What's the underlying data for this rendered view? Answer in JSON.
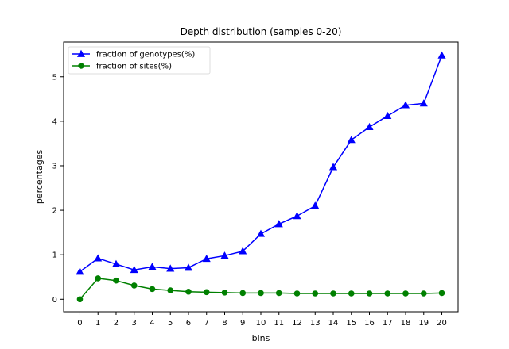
{
  "chart_data": {
    "type": "line",
    "title": "Depth distribution (samples 0-20)",
    "xlabel": "bins",
    "ylabel": "percentages",
    "x": [
      0,
      1,
      2,
      3,
      4,
      5,
      6,
      7,
      8,
      9,
      10,
      11,
      12,
      13,
      14,
      15,
      16,
      17,
      18,
      19,
      20
    ],
    "xlim": [
      -0.9,
      20.9
    ],
    "ylim": [
      -0.28,
      5.78
    ],
    "yticks": [
      0,
      1,
      2,
      3,
      4,
      5
    ],
    "grid": false,
    "legend_position": "top-left",
    "series": [
      {
        "name": "fraction of genotypes(%)",
        "color": "#0000ff",
        "marker": "triangle",
        "values": [
          0.62,
          0.92,
          0.79,
          0.66,
          0.73,
          0.69,
          0.71,
          0.91,
          0.98,
          1.08,
          1.47,
          1.69,
          1.87,
          2.1,
          2.97,
          3.58,
          3.87,
          4.12,
          4.36,
          4.4,
          5.48
        ]
      },
      {
        "name": "fraction of sites(%)",
        "color": "#008000",
        "marker": "circle",
        "values": [
          0.0,
          0.47,
          0.42,
          0.31,
          0.23,
          0.2,
          0.17,
          0.16,
          0.15,
          0.14,
          0.14,
          0.14,
          0.13,
          0.13,
          0.13,
          0.13,
          0.13,
          0.13,
          0.13,
          0.13,
          0.14
        ]
      }
    ]
  }
}
